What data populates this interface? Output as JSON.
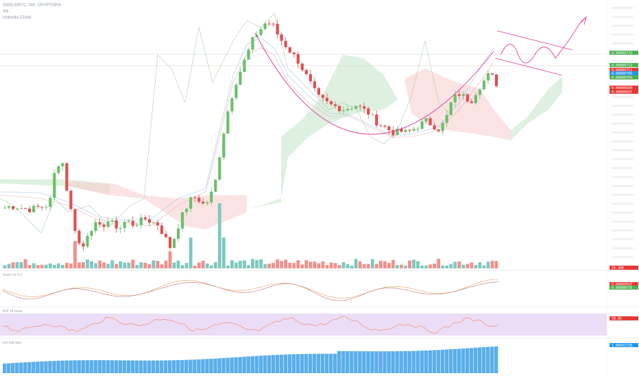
{
  "header": {
    "symbol_line": "SNGLS/BTC, 240, CRYPTOPIA",
    "sub_line": "Vol",
    "indicator_line": "Ichimoku Cloud"
  },
  "pane_labels": {
    "stoch": "Stoch 14 3 3",
    "rsi": "RSI 14 close",
    "volume_tag": "Vol Indicator"
  },
  "price_tags": [
    {
      "label": "0.00000723",
      "color": "#4caf50"
    },
    {
      "label": "0.00000713",
      "color": "#4caf50"
    },
    {
      "label": "0.00000711",
      "color": "#e53935"
    },
    {
      "label": "0.00000706",
      "color": "#2196f3"
    },
    {
      "label": "0.00000704",
      "color": "#4caf50"
    },
    {
      "label": "0.00000690",
      "color": "#e53935"
    },
    {
      "label": "0.00000687",
      "color": "#e53935"
    }
  ],
  "pane_tags": {
    "volume": {
      "label": "15.36K",
      "color": "#e53935"
    },
    "stoch_a": {
      "label": "0.00000597",
      "color": "#e53935"
    },
    "stoch_b": {
      "label": "0.00000576",
      "color": "#4caf50"
    },
    "rsi": {
      "label": "58.05",
      "color": "#e53935"
    },
    "obv": {
      "label": "1.0044271B",
      "color": "#2196f3"
    }
  },
  "colors": {
    "bull": "#6cbf6c",
    "bear": "#e05050",
    "vol_bull": "#7ec8c0",
    "vol_bear": "#f0908c",
    "cloud_green": "#c8e6c9",
    "cloud_red": "#f8d0d0",
    "pattern": "#e040a0",
    "rsi_band": "#e6d5f2",
    "obv": "#5aaeea"
  },
  "chart_data": {
    "type": "line",
    "title": "SNGLS/BTC, 240, CRYPTOPIA",
    "y_axis_side": "right",
    "close_series": [
      5.66e-06,
      5.68e-06,
      5.67e-06,
      5.65e-06,
      5.64e-06,
      5.66e-06,
      5.68e-06,
      5.7e-06,
      6.2e-06,
      6.25e-06,
      5.75e-06,
      5.4e-06,
      5.1e-06,
      5.35e-06,
      5.45e-06,
      5.4e-06,
      5.5e-06,
      5.45e-06,
      5.4e-06,
      5.5e-06,
      5.45e-06,
      5.48e-06,
      5.52e-06,
      5.48e-06,
      5.45e-06,
      5.3e-06,
      5.15e-06,
      5.4e-06,
      5.6e-06,
      5.75e-06,
      5.8e-06,
      5.7e-06,
      5.75e-06,
      6e-06,
      6.5e-06,
      6.9e-06,
      7.2e-06,
      7.4e-06,
      7.6e-06,
      7.8e-06,
      7.9e-06,
      8e-06,
      7.95e-06,
      7.8e-06,
      7.7e-06,
      7.6e-06,
      7.5e-06,
      7.35e-06,
      7.2e-06,
      7.05e-06,
      7e-06,
      6.95e-06,
      6.93e-06,
      6.9e-06,
      6.92e-06,
      6.95e-06,
      6.9e-06,
      6.85e-06,
      6.75e-06,
      6.7e-06,
      6.65e-06,
      6.6e-06,
      6.62e-06,
      6.6e-06,
      6.65e-06,
      6.7e-06,
      6.75e-06,
      6.7e-06,
      6.65e-06,
      6.75e-06,
      7e-06,
      7.1e-06,
      7.05e-06,
      7e-06,
      7.15e-06,
      7.25e-06,
      7.35e-06,
      7.22e-06
    ]
  }
}
